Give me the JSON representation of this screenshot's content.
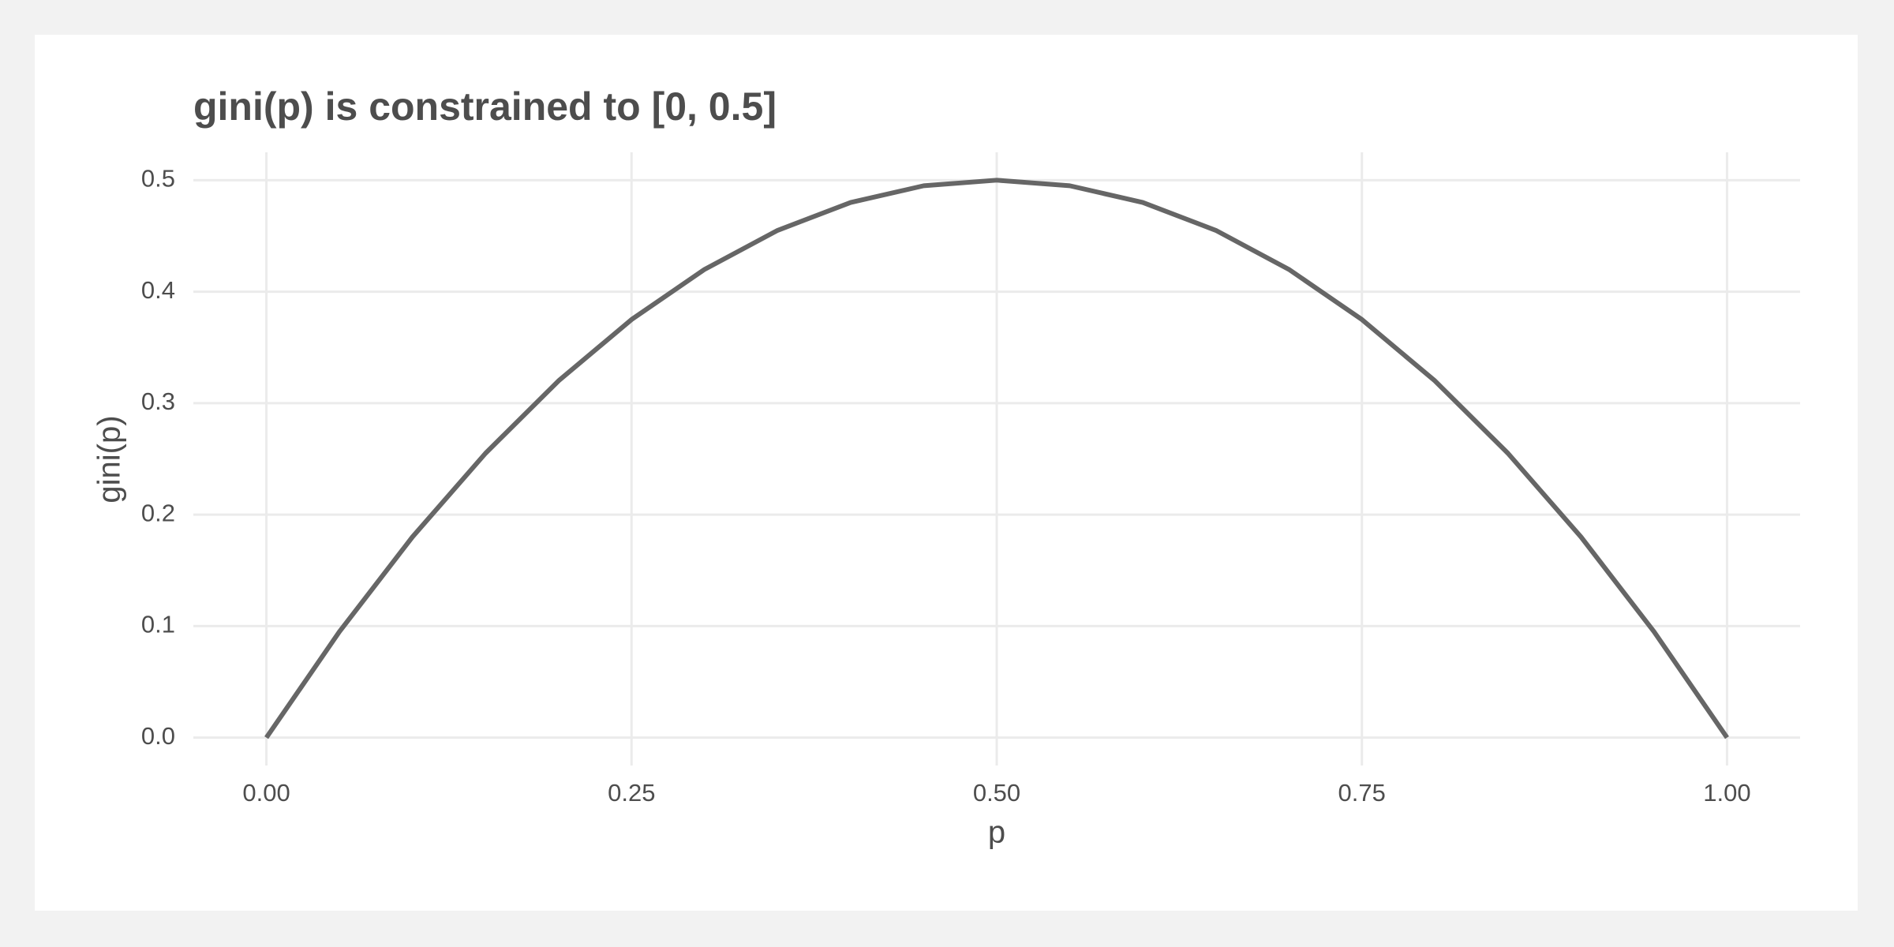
{
  "chart_data": {
    "type": "line",
    "title": "gini(p) is constrained to [0, 0.5]",
    "xlabel": "p",
    "ylabel": "gini(p)",
    "x": [
      0,
      0.05,
      0.1,
      0.15,
      0.2,
      0.25,
      0.3,
      0.35,
      0.4,
      0.45,
      0.5,
      0.55,
      0.6,
      0.65,
      0.7,
      0.75,
      0.8,
      0.85,
      0.9,
      0.95,
      1
    ],
    "values": [
      0,
      0.095,
      0.18,
      0.255,
      0.32,
      0.375,
      0.42,
      0.455,
      0.48,
      0.495,
      0.5,
      0.495,
      0.48,
      0.455,
      0.42,
      0.375,
      0.32,
      0.255,
      0.18,
      0.095,
      0
    ],
    "color": "#666666",
    "xlim": [
      -0.05,
      1.05
    ],
    "ylim": [
      -0.025,
      0.525
    ],
    "xticks": [
      {
        "value": 0,
        "label": "0.00"
      },
      0.25,
      {
        "value": 0.5,
        "label": "0.50"
      },
      0.75,
      {
        "value": 1,
        "label": "1.00"
      }
    ],
    "yticks": [
      {
        "value": 0,
        "label": "0.0"
      },
      0.1,
      0.2,
      0.3,
      0.4,
      0.5
    ],
    "grid": true
  }
}
